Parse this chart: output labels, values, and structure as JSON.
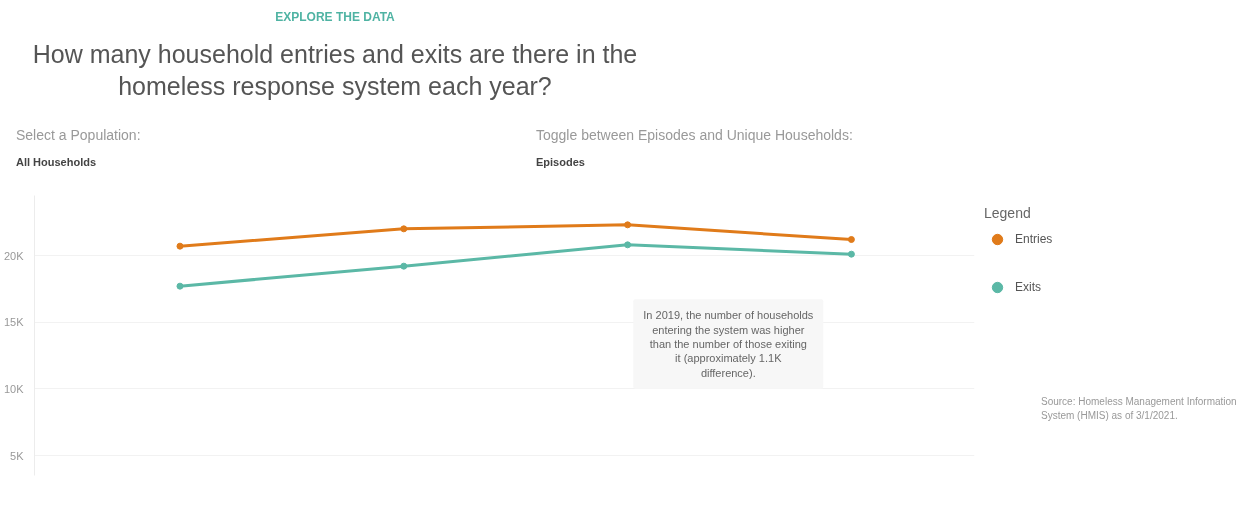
{
  "chart_data": {
    "type": "line",
    "subtitle": "EXPLORE THE DATA",
    "title": "How many household entries and exits are there in the homeless response system each year?",
    "categories": [
      null,
      null,
      null,
      null
    ],
    "series": [
      {
        "name": "Entries",
        "color": "#e07b1a",
        "values": [
          20700,
          22000,
          22300,
          21200
        ]
      },
      {
        "name": "Exits",
        "color": "#5bb8a6",
        "values": [
          17700,
          19200,
          20800,
          20100
        ]
      }
    ],
    "ylim": [
      3500,
      24500
    ],
    "yticks": [
      {
        "value": 5000,
        "label": "5K"
      },
      {
        "value": 10000,
        "label": "10K"
      },
      {
        "value": 15000,
        "label": "15K"
      },
      {
        "value": 20000,
        "label": "20K"
      }
    ],
    "grid": "y",
    "legend": "right",
    "legend_title": "Legend",
    "marker": "circle",
    "line_style": "solid",
    "tick_labels": "y",
    "annotations": [
      "Select a Population:",
      "All Households",
      "Toggle between Episodes and Unique Households:",
      "Episodes",
      "In 2019, the number of households entering the system was higher than the number of those exiting it (approximately 1.1K difference).",
      "Source: Homeless Management Information System (HMIS) as of 3/1/2021."
    ]
  }
}
